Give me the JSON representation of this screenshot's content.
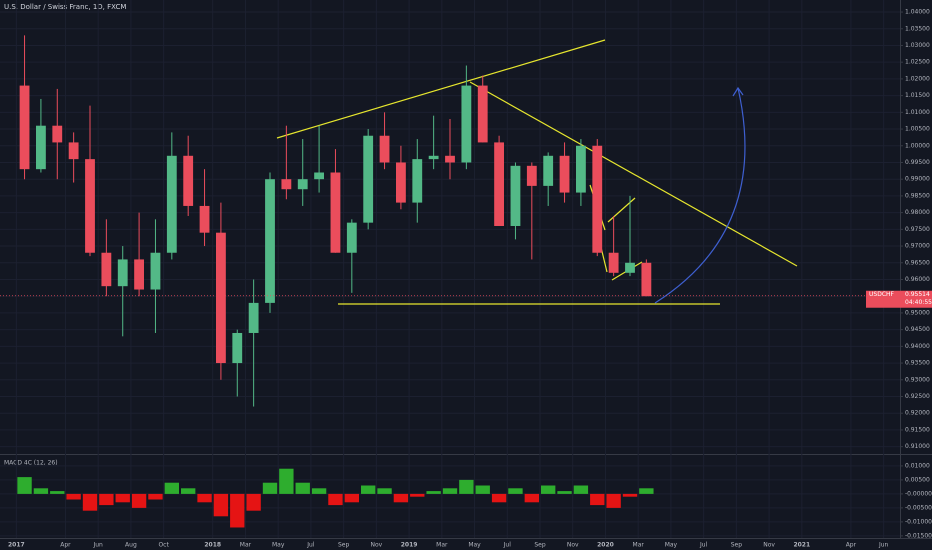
{
  "chart_data": [
    {
      "type": "candlestick",
      "title": "U.S. Dollar / Swiss Franc, 1D, FXCM",
      "x": [
        "2017-01",
        "2017-02",
        "2017-03",
        "2017-04",
        "2017-05",
        "2017-06",
        "2017-07",
        "2017-08",
        "2017-09",
        "2017-10",
        "2017-11",
        "2017-12",
        "2018-01",
        "2018-02",
        "2018-03",
        "2018-04",
        "2018-05",
        "2018-06",
        "2018-07",
        "2018-08",
        "2018-09",
        "2018-10",
        "2018-11",
        "2018-12",
        "2019-01",
        "2019-02",
        "2019-03",
        "2019-04",
        "2019-05",
        "2019-06",
        "2019-07",
        "2019-08",
        "2019-09",
        "2019-10",
        "2019-11",
        "2019-12",
        "2020-01",
        "2020-02",
        "2020-03"
      ],
      "open": [
        1.018,
        0.993,
        1.006,
        1.001,
        0.996,
        0.968,
        0.958,
        0.966,
        0.957,
        0.968,
        0.997,
        0.982,
        0.974,
        0.935,
        0.944,
        0.953,
        0.99,
        0.987,
        0.99,
        0.992,
        0.968,
        0.977,
        1.003,
        0.995,
        0.983,
        0.996,
        0.997,
        0.995,
        1.018,
        1.001,
        0.976,
        0.994,
        0.988,
        0.997,
        0.986,
        1.0,
        0.968,
        0.962,
        0.965
      ],
      "high": [
        1.033,
        1.014,
        1.017,
        1.004,
        1.012,
        0.978,
        0.97,
        0.98,
        0.978,
        1.004,
        1.003,
        0.993,
        0.983,
        0.945,
        0.96,
        0.992,
        1.006,
        1.002,
        1.006,
        0.999,
        0.978,
        1.005,
        1.01,
        1.0,
        1.002,
        1.009,
        1.008,
        1.024,
        1.021,
        1.003,
        0.995,
        0.995,
        0.998,
        1.001,
        1.002,
        1.002,
        0.979,
        0.985,
        0.966
      ],
      "low": [
        0.99,
        0.992,
        0.99,
        0.989,
        0.967,
        0.955,
        0.943,
        0.955,
        0.944,
        0.966,
        0.979,
        0.97,
        0.93,
        0.925,
        0.922,
        0.95,
        0.984,
        0.982,
        0.986,
        0.968,
        0.956,
        0.975,
        0.993,
        0.981,
        0.977,
        0.993,
        0.99,
        0.993,
        1.001,
        0.976,
        0.972,
        0.966,
        0.982,
        0.983,
        0.982,
        0.967,
        0.961,
        0.961,
        0.955
      ],
      "close": [
        0.993,
        1.006,
        1.001,
        0.996,
        0.968,
        0.958,
        0.966,
        0.957,
        0.968,
        0.997,
        0.982,
        0.974,
        0.935,
        0.944,
        0.953,
        0.99,
        0.987,
        0.99,
        0.992,
        0.968,
        0.977,
        1.003,
        0.995,
        0.983,
        0.996,
        0.997,
        0.995,
        1.018,
        1.001,
        0.976,
        0.994,
        0.988,
        0.997,
        0.986,
        1.0,
        0.968,
        0.962,
        0.965,
        0.955
      ],
      "up_color": "#53b987",
      "down_color": "#eb4d5c",
      "xlim": [
        "2016-12",
        "2021-07"
      ],
      "xticks": [
        {
          "value": "2017-01",
          "label": "2017"
        },
        {
          "value": "2017-04",
          "label": "Apr"
        },
        {
          "value": "2017-06",
          "label": "Jun"
        },
        {
          "value": "2017-08",
          "label": "Aug"
        },
        {
          "value": "2017-10",
          "label": "Oct"
        },
        {
          "value": "2018-01",
          "label": "2018"
        },
        {
          "value": "2018-03",
          "label": "Mar"
        },
        {
          "value": "2018-05",
          "label": "May"
        },
        {
          "value": "2018-07",
          "label": "Jul"
        },
        {
          "value": "2018-09",
          "label": "Sep"
        },
        {
          "value": "2018-11",
          "label": "Nov"
        },
        {
          "value": "2019-01",
          "label": "2019"
        },
        {
          "value": "2019-03",
          "label": "Mar"
        },
        {
          "value": "2019-05",
          "label": "May"
        },
        {
          "value": "2019-07",
          "label": "Jul"
        },
        {
          "value": "2019-09",
          "label": "Sep"
        },
        {
          "value": "2019-11",
          "label": "Nov"
        },
        {
          "value": "2020-01",
          "label": "2020"
        },
        {
          "value": "2020-03",
          "label": "Mar"
        },
        {
          "value": "2020-05",
          "label": "May"
        },
        {
          "value": "2020-07",
          "label": "Jul"
        },
        {
          "value": "2020-09",
          "label": "Sep"
        },
        {
          "value": "2020-11",
          "label": "Nov"
        },
        {
          "value": "2021-01",
          "label": "2021"
        },
        {
          "value": "2021-04",
          "label": "Apr"
        },
        {
          "value": "2021-06",
          "label": "Jun"
        }
      ],
      "ylim": [
        0.9078,
        1.0436
      ],
      "yticks": [
        {
          "value": 0.91,
          "label": "0.91000"
        },
        {
          "value": 0.915,
          "label": "0.91500"
        },
        {
          "value": 0.92,
          "label": "0.92000"
        },
        {
          "value": 0.925,
          "label": "0.92500"
        },
        {
          "value": 0.93,
          "label": "0.93000"
        },
        {
          "value": 0.935,
          "label": "0.93500"
        },
        {
          "value": 0.94,
          "label": "0.94000"
        },
        {
          "value": 0.945,
          "label": "0.94500"
        },
        {
          "value": 0.95,
          "label": "0.95000"
        },
        {
          "value": 0.955,
          "label": "0.95500"
        },
        {
          "value": 0.96,
          "label": "0.96000"
        },
        {
          "value": 0.965,
          "label": "0.96500"
        },
        {
          "value": 0.97,
          "label": "0.97000"
        },
        {
          "value": 0.975,
          "label": "0.97500"
        },
        {
          "value": 0.98,
          "label": "0.98000"
        },
        {
          "value": 0.985,
          "label": "0.98500"
        },
        {
          "value": 0.99,
          "label": "0.99000"
        },
        {
          "value": 0.995,
          "label": "0.99500"
        },
        {
          "value": 1.0,
          "label": "1.00000"
        },
        {
          "value": 1.005,
          "label": "1.00500"
        },
        {
          "value": 1.01,
          "label": "1.01000"
        },
        {
          "value": 1.015,
          "label": "1.01500"
        },
        {
          "value": 1.02,
          "label": "1.02000"
        },
        {
          "value": 1.025,
          "label": "1.02500"
        },
        {
          "value": 1.03,
          "label": "1.03000"
        },
        {
          "value": 1.035,
          "label": "1.03500"
        },
        {
          "value": 1.04,
          "label": "1.04000"
        }
      ],
      "last_price": {
        "symbol": "USDCHF",
        "value": 0.95514,
        "countdown": "04:40:55"
      }
    },
    {
      "type": "histogram",
      "title": "MACD 4C (12, 26)",
      "x": [
        "2017-01",
        "2017-02",
        "2017-03",
        "2017-04",
        "2017-05",
        "2017-06",
        "2017-07",
        "2017-08",
        "2017-09",
        "2017-10",
        "2017-11",
        "2017-12",
        "2018-01",
        "2018-02",
        "2018-03",
        "2018-04",
        "2018-05",
        "2018-06",
        "2018-07",
        "2018-08",
        "2018-09",
        "2018-10",
        "2018-11",
        "2018-12",
        "2019-01",
        "2019-02",
        "2019-03",
        "2019-04",
        "2019-05",
        "2019-06",
        "2019-07",
        "2019-08",
        "2019-09",
        "2019-10",
        "2019-11",
        "2019-12",
        "2020-01",
        "2020-02",
        "2020-03"
      ],
      "values": [
        0.006,
        0.002,
        0.001,
        -0.002,
        -0.006,
        -0.004,
        -0.003,
        -0.005,
        -0.002,
        0.004,
        0.002,
        -0.003,
        -0.008,
        -0.012,
        -0.006,
        0.004,
        0.009,
        0.004,
        0.002,
        -0.004,
        -0.003,
        0.003,
        0.002,
        -0.003,
        -0.001,
        0.001,
        0.002,
        0.005,
        0.003,
        -0.003,
        0.002,
        -0.003,
        0.003,
        0.001,
        0.003,
        -0.004,
        -0.005,
        -0.001,
        0.002
      ],
      "positive_color": "#2ead2e",
      "negative_color": "#e51414",
      "ylim": [
        -0.0154,
        0.0139
      ],
      "yticks": [
        {
          "value": -0.015,
          "label": "-0.01500"
        },
        {
          "value": -0.01,
          "label": "-0.01000"
        },
        {
          "value": -0.005,
          "label": "-0.00500"
        },
        {
          "value": 0,
          "label": "-0.00000"
        },
        {
          "value": 0.005,
          "label": "0.00500"
        },
        {
          "value": 0.01,
          "label": "0.01000"
        }
      ]
    }
  ]
}
